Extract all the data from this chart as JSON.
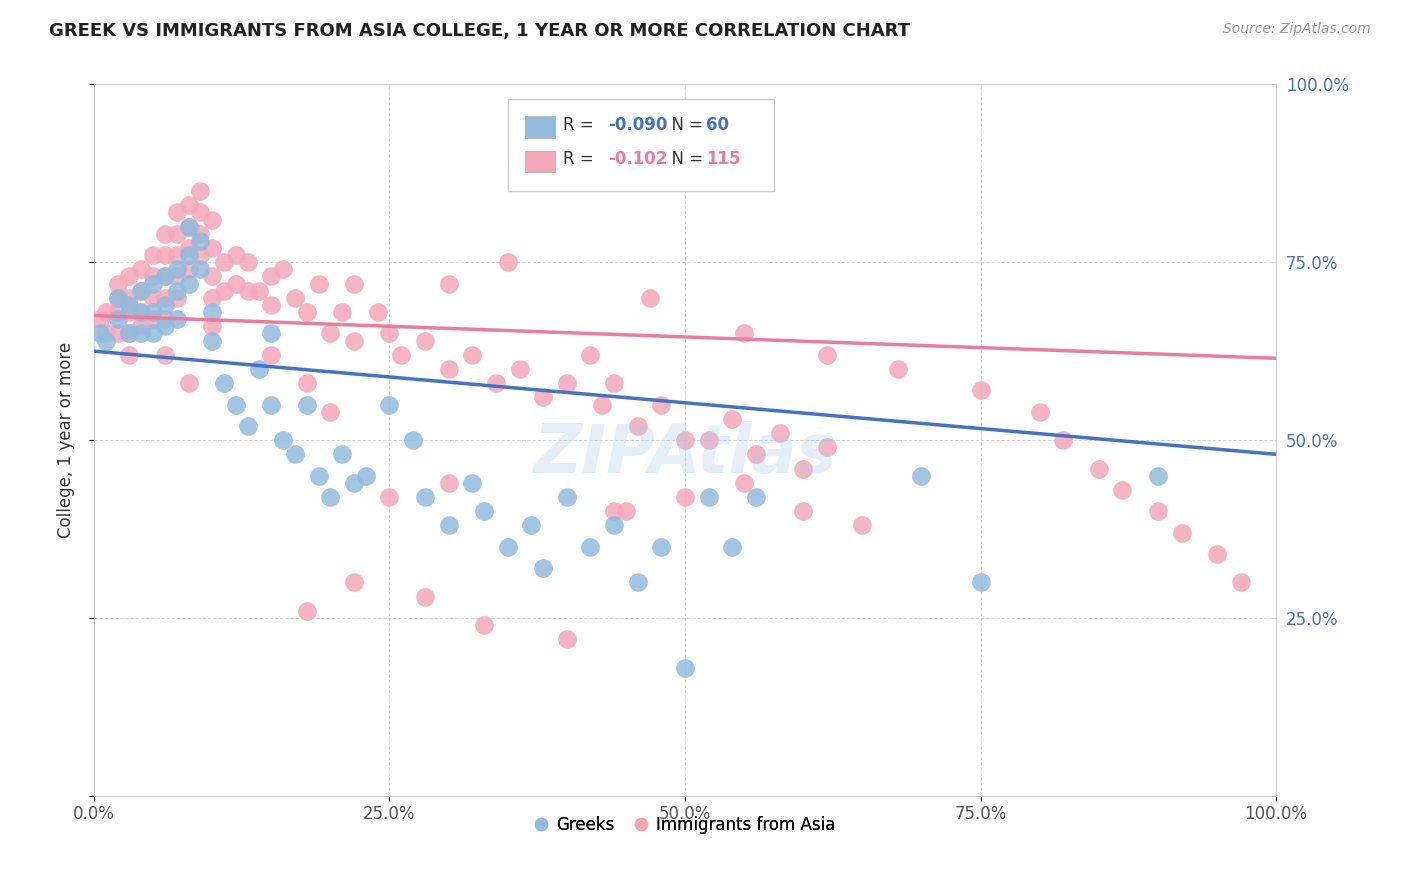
{
  "title": "GREEK VS IMMIGRANTS FROM ASIA COLLEGE, 1 YEAR OR MORE CORRELATION CHART",
  "source": "Source: ZipAtlas.com",
  "ylabel": "College, 1 year or more",
  "xlabel": "",
  "legend_greek": "Greeks",
  "legend_asia": "Immigrants from Asia",
  "r_greek": "-0.090",
  "n_greek": "60",
  "r_asia": "-0.102",
  "n_asia": "115",
  "blue_color": "#92BBDE",
  "pink_color": "#F4A7B9",
  "blue_line_color": "#4472C4",
  "pink_line_color": "#E87DA0",
  "yaxis_label_color": "#4472C4",
  "xlim": [
    0.0,
    1.0
  ],
  "ylim": [
    0.0,
    1.0
  ],
  "xticks": [
    0.0,
    0.25,
    0.5,
    0.75,
    1.0
  ],
  "yticks": [
    0.0,
    0.25,
    0.5,
    0.75,
    1.0
  ],
  "xticklabels": [
    "0.0%",
    "25.0%",
    "50.0%",
    "75.0%",
    "100.0%"
  ],
  "yticklabels_right": [
    "",
    "25.0%",
    "50.0%",
    "75.0%",
    "100.0%"
  ],
  "watermark": "ZIPAtlas",
  "greek_points_x": [
    0.005,
    0.01,
    0.02,
    0.02,
    0.03,
    0.03,
    0.04,
    0.04,
    0.04,
    0.05,
    0.05,
    0.05,
    0.06,
    0.06,
    0.06,
    0.07,
    0.07,
    0.07,
    0.08,
    0.08,
    0.08,
    0.09,
    0.09,
    0.1,
    0.1,
    0.11,
    0.12,
    0.13,
    0.14,
    0.15,
    0.15,
    0.16,
    0.17,
    0.18,
    0.19,
    0.2,
    0.21,
    0.22,
    0.23,
    0.25,
    0.27,
    0.28,
    0.3,
    0.32,
    0.33,
    0.35,
    0.37,
    0.38,
    0.4,
    0.42,
    0.44,
    0.46,
    0.48,
    0.5,
    0.52,
    0.54,
    0.56,
    0.7,
    0.75,
    0.9
  ],
  "greek_points_y": [
    0.65,
    0.64,
    0.67,
    0.7,
    0.69,
    0.65,
    0.71,
    0.68,
    0.65,
    0.72,
    0.68,
    0.65,
    0.73,
    0.69,
    0.66,
    0.74,
    0.71,
    0.67,
    0.8,
    0.76,
    0.72,
    0.78,
    0.74,
    0.68,
    0.64,
    0.58,
    0.55,
    0.52,
    0.6,
    0.55,
    0.65,
    0.5,
    0.48,
    0.55,
    0.45,
    0.42,
    0.48,
    0.44,
    0.45,
    0.55,
    0.5,
    0.42,
    0.38,
    0.44,
    0.4,
    0.35,
    0.38,
    0.32,
    0.42,
    0.35,
    0.38,
    0.3,
    0.35,
    0.18,
    0.42,
    0.35,
    0.42,
    0.45,
    0.3,
    0.45
  ],
  "asia_points_x": [
    0.005,
    0.01,
    0.01,
    0.02,
    0.02,
    0.02,
    0.02,
    0.03,
    0.03,
    0.03,
    0.03,
    0.04,
    0.04,
    0.04,
    0.05,
    0.05,
    0.05,
    0.05,
    0.06,
    0.06,
    0.06,
    0.06,
    0.06,
    0.07,
    0.07,
    0.07,
    0.07,
    0.07,
    0.08,
    0.08,
    0.08,
    0.08,
    0.09,
    0.09,
    0.09,
    0.09,
    0.1,
    0.1,
    0.1,
    0.1,
    0.11,
    0.11,
    0.12,
    0.12,
    0.13,
    0.13,
    0.14,
    0.15,
    0.15,
    0.16,
    0.17,
    0.18,
    0.19,
    0.2,
    0.21,
    0.22,
    0.22,
    0.24,
    0.25,
    0.26,
    0.28,
    0.3,
    0.3,
    0.32,
    0.34,
    0.35,
    0.36,
    0.38,
    0.4,
    0.42,
    0.43,
    0.44,
    0.46,
    0.48,
    0.5,
    0.52,
    0.54,
    0.56,
    0.58,
    0.6,
    0.62,
    0.44,
    0.3,
    0.25,
    0.2,
    0.18,
    0.15,
    0.1,
    0.08,
    0.06,
    0.04,
    0.03,
    0.45,
    0.5,
    0.55,
    0.6,
    0.65,
    0.22,
    0.28,
    0.18,
    0.33,
    0.4,
    0.47,
    0.55,
    0.62,
    0.68,
    0.75,
    0.8,
    0.82,
    0.85,
    0.87,
    0.9,
    0.92,
    0.95,
    0.97
  ],
  "asia_points_y": [
    0.67,
    0.68,
    0.65,
    0.72,
    0.7,
    0.68,
    0.65,
    0.73,
    0.7,
    0.68,
    0.65,
    0.74,
    0.71,
    0.68,
    0.76,
    0.73,
    0.7,
    0.67,
    0.79,
    0.76,
    0.73,
    0.7,
    0.67,
    0.82,
    0.79,
    0.76,
    0.73,
    0.7,
    0.83,
    0.8,
    0.77,
    0.74,
    0.85,
    0.82,
    0.79,
    0.76,
    0.81,
    0.77,
    0.73,
    0.7,
    0.75,
    0.71,
    0.76,
    0.72,
    0.75,
    0.71,
    0.71,
    0.73,
    0.69,
    0.74,
    0.7,
    0.68,
    0.72,
    0.65,
    0.68,
    0.64,
    0.72,
    0.68,
    0.65,
    0.62,
    0.64,
    0.6,
    0.72,
    0.62,
    0.58,
    0.75,
    0.6,
    0.56,
    0.58,
    0.62,
    0.55,
    0.58,
    0.52,
    0.55,
    0.5,
    0.5,
    0.53,
    0.48,
    0.51,
    0.46,
    0.49,
    0.4,
    0.44,
    0.42,
    0.54,
    0.58,
    0.62,
    0.66,
    0.58,
    0.62,
    0.66,
    0.62,
    0.4,
    0.42,
    0.44,
    0.4,
    0.38,
    0.3,
    0.28,
    0.26,
    0.24,
    0.22,
    0.7,
    0.65,
    0.62,
    0.6,
    0.57,
    0.54,
    0.5,
    0.46,
    0.43,
    0.4,
    0.37,
    0.34,
    0.3
  ],
  "blue_trend_x0": 0.0,
  "blue_trend_y0": 0.625,
  "blue_trend_x1": 1.0,
  "blue_trend_y1": 0.48,
  "pink_trend_x0": 0.0,
  "pink_trend_y0": 0.675,
  "pink_trend_x1": 1.0,
  "pink_trend_y1": 0.615
}
